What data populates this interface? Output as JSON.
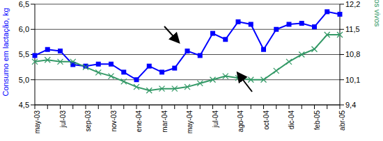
{
  "chart_data": {
    "type": "line",
    "categories": [
      "may-03",
      null,
      "jul-03",
      null,
      "sep-03",
      null,
      "nov-03",
      null,
      "ene-04",
      null,
      "mar-04",
      null,
      "may-04",
      null,
      "jul-04",
      null,
      "ago-04",
      null,
      "oct-04",
      null,
      "dic-04",
      null,
      "feb-05",
      null,
      "abr-05"
    ],
    "y_label": "Consumo em lactação, kg",
    "y2_label": "Nascidos vivos",
    "ylim": [
      4.5,
      6.5
    ],
    "yticks": [
      {
        "value": 4.5,
        "label": "4,5"
      },
      {
        "value": 5.0,
        "label": "5,0"
      },
      {
        "value": 5.5,
        "label": "5,5"
      },
      {
        "value": 6.0,
        "label": "6,0"
      },
      {
        "value": 6.5,
        "label": "6,5"
      }
    ],
    "y2lim": [
      9.4,
      12.2
    ],
    "y2ticks": [
      {
        "value": 9.4,
        "label": "9,4"
      },
      {
        "value": 10.1,
        "label": "10,1"
      },
      {
        "value": 10.8,
        "label": "10,8"
      },
      {
        "value": 11.5,
        "label": "11,5"
      },
      {
        "value": 12.2,
        "label": "12,2"
      }
    ],
    "grid": true,
    "series": [
      {
        "name": "Consumo em lactação, kg",
        "color": "#0000ff",
        "marker": "square",
        "values": [
          5.48,
          5.6,
          5.57,
          5.3,
          5.27,
          5.31,
          5.31,
          5.15,
          5.0,
          5.27,
          5.15,
          5.23,
          5.57,
          5.48,
          5.92,
          5.8,
          6.15,
          6.1,
          5.6,
          6.0,
          6.1,
          6.12,
          6.05,
          6.35,
          6.3
        ]
      },
      {
        "name": "Nascidos vivos",
        "color": "#339966",
        "marker": "x",
        "axis": "y2",
        "values": [
          10.6,
          10.65,
          10.6,
          10.6,
          10.45,
          10.3,
          10.2,
          10.05,
          9.9,
          9.8,
          9.85,
          9.85,
          9.9,
          10.0,
          10.1,
          10.2,
          10.15,
          10.1,
          10.1,
          10.35,
          10.6,
          10.8,
          10.95,
          11.35,
          11.35
        ]
      }
    ]
  }
}
